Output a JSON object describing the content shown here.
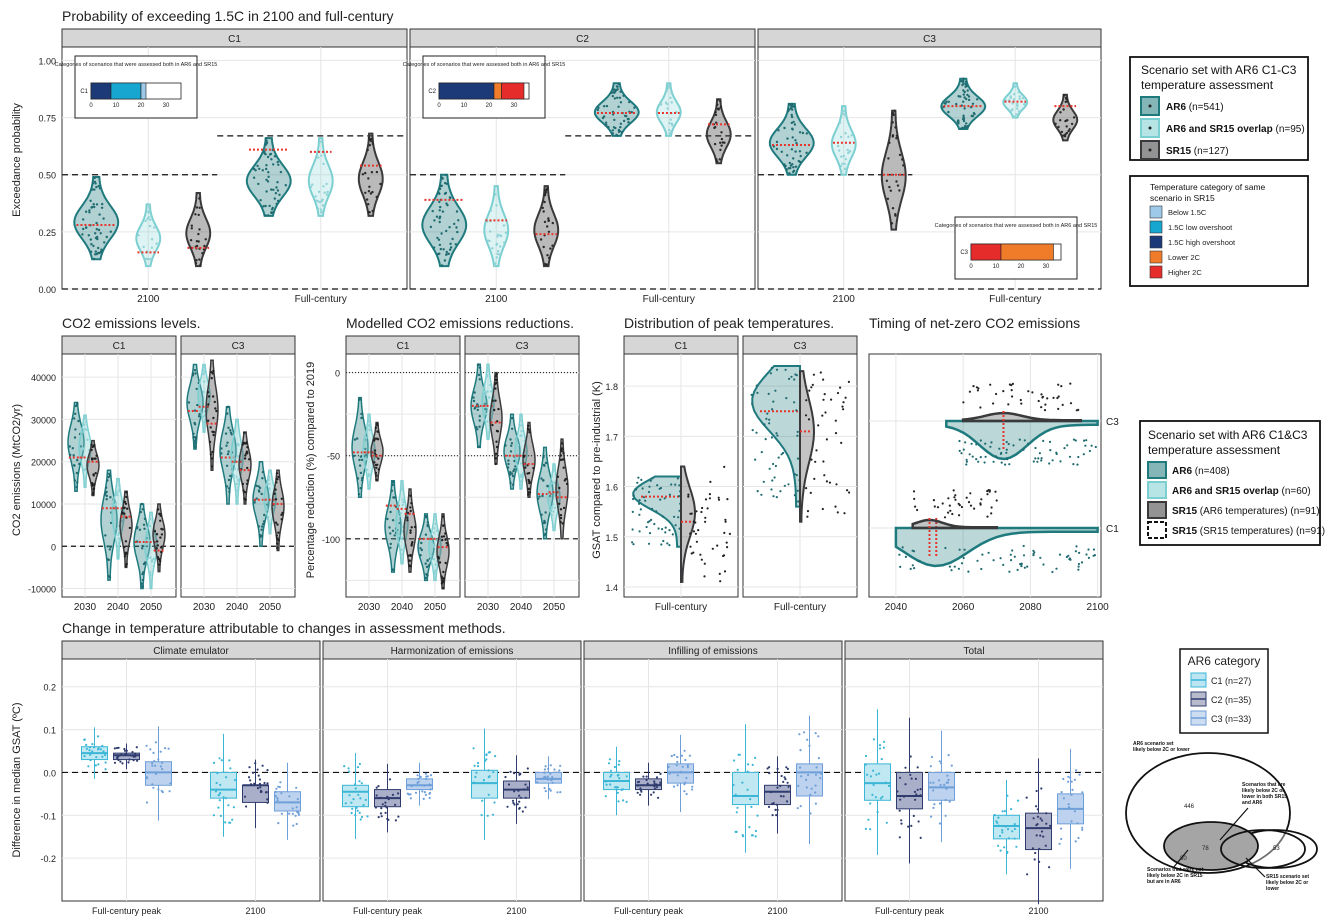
{
  "colors": {
    "ar6": "#1f7a7e",
    "overlap": "#7ccfd0",
    "sr15": "#3a3a3d",
    "median": "#e8332a",
    "strip": "#d6d6d6",
    "grid": "#e6e6e6",
    "cat_below15": "#9ec9e8",
    "cat_low_os": "#16a6d0",
    "cat_high_os": "#1d3a78",
    "cat_lower2c": "#f07c2a",
    "cat_higher2c": "#e62b2b",
    "c1": "#3bb6d6",
    "c2": "#303c6e",
    "c3": "#6f9fd8"
  },
  "panel_a": {
    "title": "Probability of exceeding 1.5C in 2100 and full-century",
    "ylabel": "Exceedance probability",
    "yticks": [
      "0.00",
      "0.25",
      "0.50",
      "0.75",
      "1.00"
    ],
    "facets": [
      "C1",
      "C2",
      "C3"
    ],
    "xcats": [
      "2100",
      "Full-century"
    ],
    "inset_title": "Categories of scenarios that were assessed both in AR6 and SR15",
    "inset_ticks": [
      "0",
      "10",
      "20",
      "30"
    ],
    "inset_rows": [
      {
        "facet": "C1",
        "label": "C1",
        "segments": [
          {
            "cat": "cat_high_os",
            "n": 8
          },
          {
            "cat": "cat_low_os",
            "n": 12
          },
          {
            "cat": "cat_below15",
            "n": 2
          }
        ]
      },
      {
        "facet": "C2",
        "label": "C2",
        "segments": [
          {
            "cat": "cat_high_os",
            "n": 22
          },
          {
            "cat": "cat_lower2c",
            "n": 3
          },
          {
            "cat": "cat_higher2c",
            "n": 9
          }
        ]
      },
      {
        "facet": "C3",
        "label": "C3",
        "segments": [
          {
            "cat": "cat_higher2c",
            "n": 12
          },
          {
            "cat": "cat_lower2c",
            "n": 21
          }
        ]
      }
    ],
    "legend": {
      "title": "Scenario set with AR6 C1-C3 temperature assessment",
      "items": [
        {
          "key": "ar6",
          "bold": "AR6",
          "rest": " (n=541)"
        },
        {
          "key": "overlap",
          "bold": "AR6 and SR15 overlap",
          "rest": " (n=95)"
        },
        {
          "key": "sr15",
          "bold": "SR15",
          "rest": " (n=127)"
        }
      ]
    },
    "cat_legend": {
      "title": "Temperature category of same scenario in SR15",
      "items": [
        {
          "key": "cat_below15",
          "label": "Below 1.5C"
        },
        {
          "key": "cat_low_os",
          "label": "1.5C low overshoot"
        },
        {
          "key": "cat_high_os",
          "label": "1.5C high overshoot"
        },
        {
          "key": "cat_lower2c",
          "label": "Lower 2C"
        },
        {
          "key": "cat_higher2c",
          "label": "Higher 2C"
        }
      ]
    }
  },
  "panel_b": {
    "title": "CO2 emissions levels.",
    "ylabel": "CO2 emissions (MtCO2/yr)",
    "yticks": [
      "-10000",
      "0",
      "10000",
      "20000",
      "30000",
      "40000"
    ],
    "facets": [
      "C1",
      "C3"
    ],
    "xticks": [
      "2030",
      "2040",
      "2050"
    ]
  },
  "panel_c": {
    "title": "Modelled CO2 emissions reductions.",
    "ylabel": "Percentage reduction (%) compared to 2019",
    "yticks": [
      "-100",
      "-50",
      "0"
    ],
    "facets": [
      "C1",
      "C3"
    ],
    "xticks": [
      "2030",
      "2040",
      "2050"
    ]
  },
  "panel_d": {
    "title": "Distribution of peak temperatures.",
    "ylabel": "GSAT compared to pre-industrial (K)",
    "yticks": [
      "1.4",
      "1.5",
      "1.6",
      "1.7",
      "1.8"
    ],
    "facets": [
      "C1",
      "C3"
    ],
    "xcat": "Full-century"
  },
  "panel_e": {
    "title": "Timing of net-zero CO2 emissions",
    "xticks": [
      "2040",
      "2060",
      "2080",
      "2100"
    ],
    "ycats": [
      "C1",
      "C3"
    ],
    "legend": {
      "title": "Scenario set with AR6 C1&C3 temperature assessment",
      "items": [
        {
          "key": "ar6",
          "bold": "AR6",
          "rest": " (n=408)"
        },
        {
          "key": "overlap",
          "bold": "AR6 and SR15 overlap",
          "rest": " (n=60)"
        },
        {
          "key": "sr15",
          "bold": "SR15",
          "rest": " (AR6 temperatures) (n=91)"
        },
        {
          "key": "sr15dash",
          "bold": "SR15",
          "rest": " (SR15 temperatures) (n=91)"
        }
      ]
    }
  },
  "panel_f": {
    "title": "Change in temperature attributable to changes in assessment methods.",
    "ylabel": "Difference in median GSAT (ºC)",
    "yticks": [
      "-0.2",
      "-0.1",
      "0.0",
      "0.1",
      "0.2"
    ],
    "facets": [
      "Climate emulator",
      "Harmonization of emissions",
      "Infilling of emissions",
      "Total"
    ],
    "xcats": [
      "Full-century peak",
      "2100"
    ],
    "legend": {
      "title": "AR6 category",
      "items": [
        {
          "key": "c1",
          "label": "C1 (n=27)"
        },
        {
          "key": "c2",
          "label": "C2 (n=35)"
        },
        {
          "key": "c3",
          "label": "C3 (n=33)"
        }
      ]
    }
  },
  "venn": {
    "label_ar6": "AR6 scenario set likely below 2C or lower",
    "n_ar6": "446",
    "label_both": "Scenarios that are likely below 2C or lower in both SR15 and AR6",
    "n_both": "78",
    "label_sr15": "SR15 scenario set likely below 2C or lower",
    "n_sr15": "53",
    "label_notar6": "Scenarios that were not likely below 2C in SR15 but are in AR6",
    "n_notar6": "80"
  },
  "chart_data": [
    {
      "type": "violin",
      "title": "Probability of exceeding 1.5C in 2100 and full-century",
      "ylabel": "Exceedance probability",
      "ylim": [
        0,
        1.05
      ],
      "reference_lines": {
        "C1": {
          "2100": 0.5,
          "Full-century": 0.67
        },
        "C2": {
          "2100": 0.5,
          "Full-century": 0.67
        },
        "C3": {
          "2100": 0.5,
          "Full-century": null
        }
      },
      "series": [
        {
          "facet": "C1",
          "x": "2100",
          "set": "ar6",
          "range": [
            0.13,
            0.49
          ],
          "median": 0.28
        },
        {
          "facet": "C1",
          "x": "2100",
          "set": "overlap",
          "range": [
            0.1,
            0.37
          ],
          "median": 0.16
        },
        {
          "facet": "C1",
          "x": "2100",
          "set": "sr15",
          "range": [
            0.1,
            0.42
          ],
          "median": 0.18
        },
        {
          "facet": "C1",
          "x": "Full-century",
          "set": "ar6",
          "range": [
            0.32,
            0.66
          ],
          "median": 0.61
        },
        {
          "facet": "C1",
          "x": "Full-century",
          "set": "overlap",
          "range": [
            0.32,
            0.66
          ],
          "median": 0.6
        },
        {
          "facet": "C1",
          "x": "Full-century",
          "set": "sr15",
          "range": [
            0.32,
            0.68
          ],
          "median": 0.54
        },
        {
          "facet": "C2",
          "x": "2100",
          "set": "ar6",
          "range": [
            0.1,
            0.5
          ],
          "median": 0.39
        },
        {
          "facet": "C2",
          "x": "2100",
          "set": "overlap",
          "range": [
            0.1,
            0.45
          ],
          "median": 0.3
        },
        {
          "facet": "C2",
          "x": "2100",
          "set": "sr15",
          "range": [
            0.1,
            0.45
          ],
          "median": 0.24
        },
        {
          "facet": "C2",
          "x": "Full-century",
          "set": "ar6",
          "range": [
            0.67,
            0.9
          ],
          "median": 0.77
        },
        {
          "facet": "C2",
          "x": "Full-century",
          "set": "overlap",
          "range": [
            0.67,
            0.9
          ],
          "median": 0.77
        },
        {
          "facet": "C2",
          "x": "Full-century",
          "set": "sr15",
          "range": [
            0.55,
            0.83
          ],
          "median": 0.72
        },
        {
          "facet": "C3",
          "x": "2100",
          "set": "ar6",
          "range": [
            0.5,
            0.81
          ],
          "median": 0.63
        },
        {
          "facet": "C3",
          "x": "2100",
          "set": "overlap",
          "range": [
            0.5,
            0.8
          ],
          "median": 0.64
        },
        {
          "facet": "C3",
          "x": "2100",
          "set": "sr15",
          "range": [
            0.26,
            0.78
          ],
          "median": 0.5
        },
        {
          "facet": "C3",
          "x": "Full-century",
          "set": "ar6",
          "range": [
            0.7,
            0.92
          ],
          "median": 0.8
        },
        {
          "facet": "C3",
          "x": "Full-century",
          "set": "overlap",
          "range": [
            0.75,
            0.9
          ],
          "median": 0.82
        },
        {
          "facet": "C3",
          "x": "Full-century",
          "set": "sr15",
          "range": [
            0.65,
            0.85
          ],
          "median": 0.8
        }
      ]
    },
    {
      "type": "violin",
      "title": "CO2 emissions levels.",
      "ylabel": "CO2 emissions (MtCO2/yr)",
      "ylim": [
        -12000,
        45000
      ],
      "series": [
        {
          "facet": "C1",
          "year": 2030,
          "ar6": [
            13000,
            34000,
            21000
          ],
          "overlap": [
            14000,
            31000,
            21000
          ],
          "sr15": [
            12000,
            25000,
            20000
          ]
        },
        {
          "facet": "C1",
          "year": 2040,
          "ar6": [
            -8000,
            18000,
            9000
          ],
          "overlap": [
            -3000,
            16000,
            9000
          ],
          "sr15": [
            -5000,
            13000,
            7000
          ]
        },
        {
          "facet": "C1",
          "year": 2050,
          "ar6": [
            -10000,
            10000,
            1000
          ],
          "overlap": [
            -10000,
            8000,
            1000
          ],
          "sr15": [
            -6000,
            10000,
            -1000
          ]
        },
        {
          "facet": "C3",
          "year": 2030,
          "ar6": [
            23000,
            43000,
            32000
          ],
          "overlap": [
            27000,
            43000,
            33000
          ],
          "sr15": [
            18000,
            44000,
            29000
          ]
        },
        {
          "facet": "C3",
          "year": 2040,
          "ar6": [
            10000,
            33000,
            21000
          ],
          "overlap": [
            10000,
            30000,
            20000
          ],
          "sr15": [
            10000,
            27000,
            18000
          ]
        },
        {
          "facet": "C3",
          "year": 2050,
          "ar6": [
            0,
            20000,
            11000
          ],
          "overlap": [
            3000,
            18000,
            11000
          ],
          "sr15": [
            -1000,
            18000,
            10000
          ]
        }
      ]
    },
    {
      "type": "violin",
      "title": "Modelled CO2 emissions reductions.",
      "ylabel": "Percentage reduction (%) compared to 2019",
      "ylim": [
        -135,
        10
      ],
      "reference_lines": {
        "C1": [
          0,
          -50,
          -100
        ],
        "C3": [
          0,
          -50,
          -100
        ]
      },
      "series": [
        {
          "facet": "C1",
          "year": 2030,
          "ar6": [
            -75,
            -15,
            -48
          ],
          "overlap": [
            -70,
            -25,
            -48
          ],
          "sr15": [
            -65,
            -30,
            -50
          ]
        },
        {
          "facet": "C1",
          "year": 2040,
          "ar6": [
            -120,
            -65,
            -80
          ],
          "overlap": [
            -115,
            -65,
            -82
          ],
          "sr15": [
            -120,
            -70,
            -85
          ]
        },
        {
          "facet": "C1",
          "year": 2050,
          "ar6": [
            -125,
            -85,
            -100
          ],
          "overlap": [
            -125,
            -85,
            -100
          ],
          "sr15": [
            -130,
            -85,
            -105
          ]
        },
        {
          "facet": "C3",
          "year": 2030,
          "ar6": [
            -45,
            5,
            -20
          ],
          "overlap": [
            -40,
            5,
            -20
          ],
          "sr15": [
            -55,
            0,
            -30
          ]
        },
        {
          "facet": "C3",
          "year": 2040,
          "ar6": [
            -70,
            -25,
            -50
          ],
          "overlap": [
            -70,
            -25,
            -50
          ],
          "sr15": [
            -75,
            -30,
            -55
          ]
        },
        {
          "facet": "C3",
          "year": 2050,
          "ar6": [
            -100,
            -45,
            -73
          ],
          "overlap": [
            -95,
            -55,
            -72
          ],
          "sr15": [
            -100,
            -40,
            -75
          ]
        }
      ]
    },
    {
      "type": "violin",
      "title": "Distribution of peak temperatures.",
      "ylabel": "GSAT compared to pre-industrial (K)",
      "ylim": [
        1.38,
        1.86
      ],
      "series": [
        {
          "facet": "C1",
          "x": "Full-century",
          "set": "ar6",
          "range": [
            1.48,
            1.62
          ],
          "median": 1.58
        },
        {
          "facet": "C1",
          "x": "Full-century",
          "set": "sr15",
          "range": [
            1.41,
            1.64
          ],
          "median": 1.53
        },
        {
          "facet": "C3",
          "x": "Full-century",
          "set": "ar6",
          "range": [
            1.56,
            1.84
          ],
          "median": 1.75
        },
        {
          "facet": "C3",
          "x": "Full-century",
          "set": "sr15",
          "range": [
            1.53,
            1.83
          ],
          "median": 1.71
        }
      ]
    },
    {
      "type": "violin",
      "title": "Timing of net-zero CO2 emissions",
      "xlim": [
        2032,
        2101
      ],
      "series": [
        {
          "category": "C1",
          "set": "ar6",
          "range": [
            2040,
            2100
          ],
          "median": 2052
        },
        {
          "category": "C1",
          "set": "sr15",
          "range": [
            2045,
            2070
          ],
          "median": 2050
        },
        {
          "category": "C3",
          "set": "ar6",
          "range": [
            2055,
            2100
          ],
          "median": 2072
        },
        {
          "category": "C3",
          "set": "sr15",
          "range": [
            2060,
            2095
          ],
          "median": 2072
        }
      ]
    },
    {
      "type": "box",
      "title": "Change in temperature attributable to changes in assessment methods.",
      "ylabel": "Difference in median GSAT (ºC)",
      "ylim": [
        -0.3,
        0.26
      ],
      "series": [
        {
          "facet": "Climate emulator",
          "x": "Full-century peak",
          "C1": [
            0.03,
            0.045,
            0.06
          ],
          "C2": [
            0.03,
            0.04,
            0.045
          ],
          "C3": [
            -0.03,
            0.0,
            0.025
          ]
        },
        {
          "facet": "Climate emulator",
          "x": "2100",
          "C1": [
            -0.06,
            -0.04,
            0.0
          ],
          "C2": [
            -0.07,
            -0.03,
            -0.03
          ],
          "C3": [
            -0.09,
            -0.07,
            -0.045
          ]
        },
        {
          "facet": "Harmonization of emissions",
          "x": "Full-century peak",
          "C1": [
            -0.08,
            -0.045,
            -0.03
          ],
          "C2": [
            -0.08,
            -0.06,
            -0.04
          ],
          "C3": [
            -0.04,
            -0.03,
            -0.015
          ]
        },
        {
          "facet": "Harmonization of emissions",
          "x": "2100",
          "C1": [
            -0.06,
            -0.025,
            0.005
          ],
          "C2": [
            -0.06,
            -0.04,
            -0.02
          ],
          "C3": [
            -0.025,
            -0.015,
            0.0
          ]
        },
        {
          "facet": "Infilling of emissions",
          "x": "Full-century peak",
          "C1": [
            -0.04,
            -0.02,
            0.0
          ],
          "C2": [
            -0.04,
            -0.03,
            -0.015
          ],
          "C3": [
            -0.025,
            0.0,
            0.02
          ]
        },
        {
          "facet": "Infilling of emissions",
          "x": "2100",
          "C1": [
            -0.075,
            -0.055,
            0.0
          ],
          "C2": [
            -0.075,
            -0.045,
            -0.03
          ],
          "C3": [
            -0.055,
            0.0,
            0.02
          ]
        },
        {
          "facet": "Total",
          "x": "Full-century peak",
          "C1": [
            -0.065,
            -0.025,
            0.02
          ],
          "C2": [
            -0.085,
            -0.055,
            0.0
          ],
          "C3": [
            -0.065,
            -0.035,
            0.0
          ]
        },
        {
          "facet": "Total",
          "x": "2100",
          "C1": [
            -0.155,
            -0.125,
            -0.1
          ],
          "C2": [
            -0.18,
            -0.13,
            -0.095
          ],
          "C3": [
            -0.12,
            -0.085,
            -0.05
          ]
        }
      ]
    }
  ]
}
